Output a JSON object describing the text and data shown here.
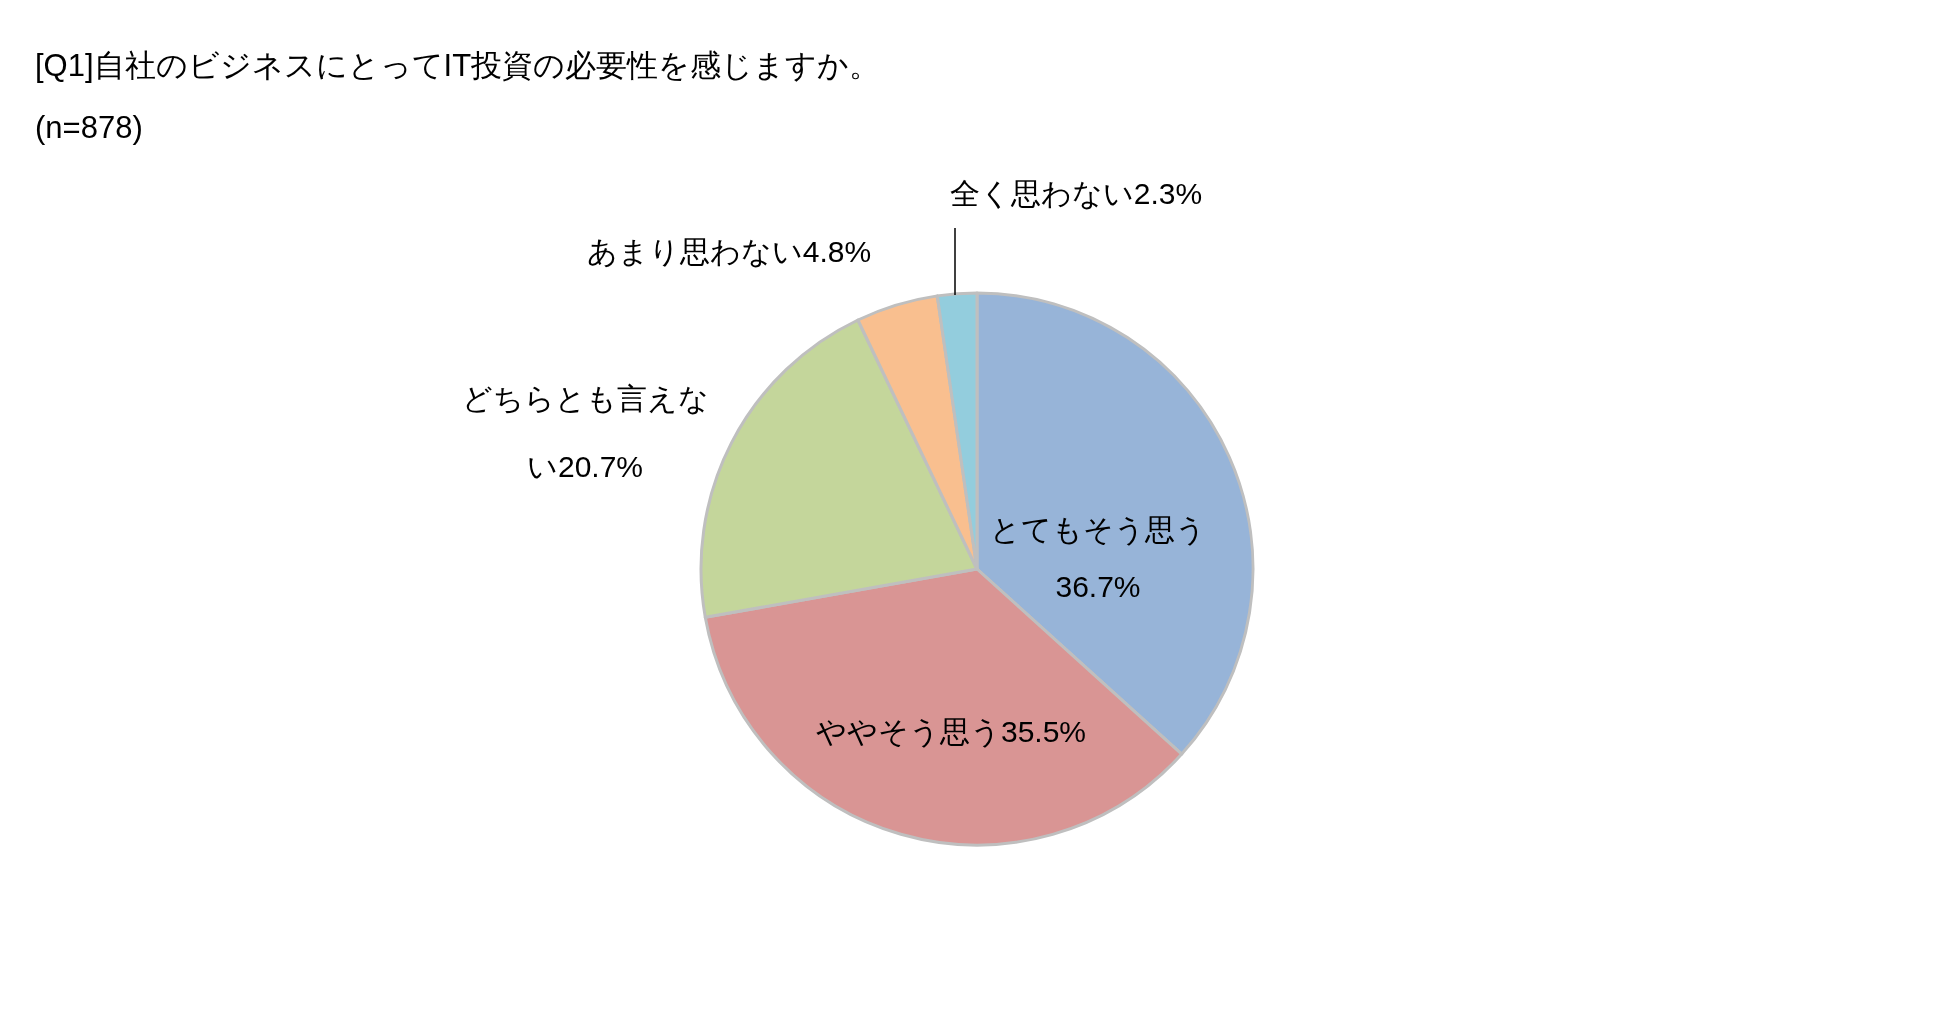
{
  "chart_data": {
    "type": "pie",
    "title": "[Q1]自社のビジネスにとってIT投資の必要性を感じますか。",
    "subtitle": "(n=878)",
    "categories": [
      "とてもそう思う",
      "ややそう思う",
      "どちらとも言えない",
      "あまり思わない",
      "全く思わない"
    ],
    "values": [
      36.7,
      35.5,
      20.7,
      4.8,
      2.3
    ],
    "colors": [
      "#97b4d8",
      "#d99594",
      "#c4d69b",
      "#f9bf8f",
      "#93cddd"
    ],
    "value_labels": [
      "36.7%",
      "35.5%",
      "20.7%",
      "4.8%",
      "2.3%"
    ]
  }
}
